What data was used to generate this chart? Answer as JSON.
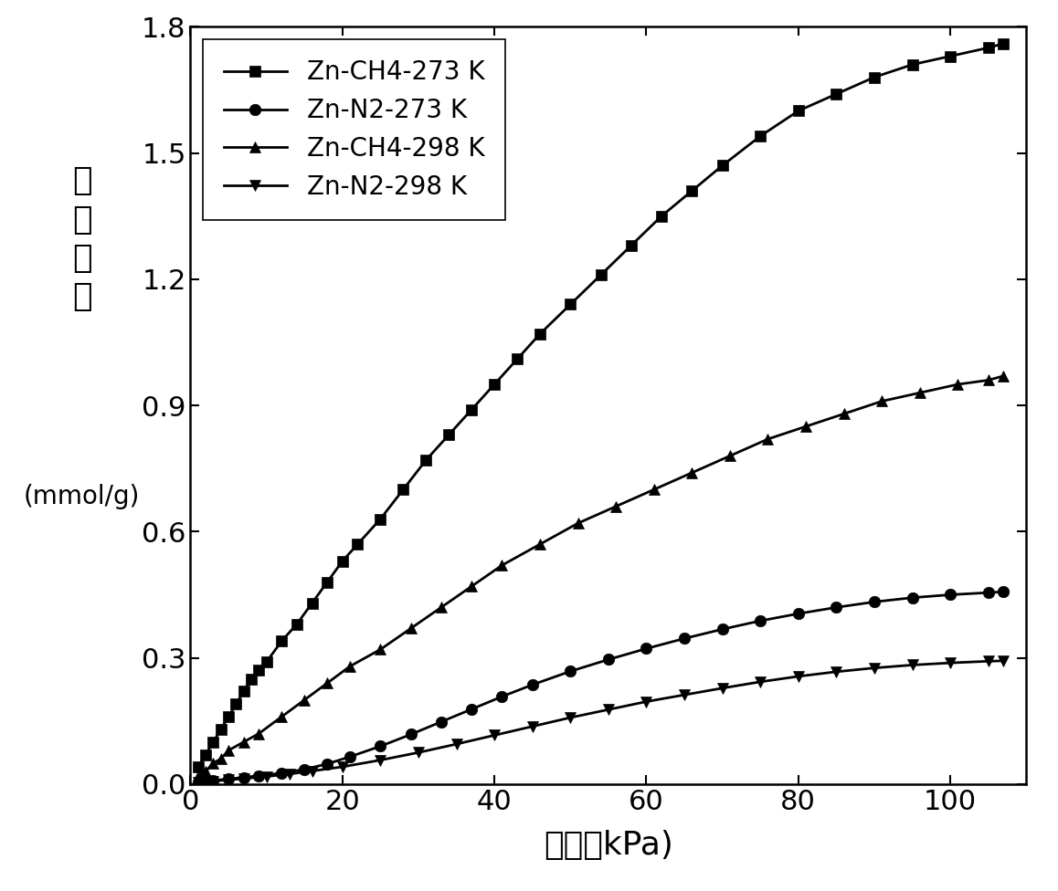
{
  "xlabel": "压力（kPa)",
  "ylabel_cn": "吸\n附\n容\n量",
  "ylabel_en": "(mmol/g)",
  "xlim": [
    0,
    110
  ],
  "ylim": [
    0,
    1.8
  ],
  "xticks": [
    0,
    20,
    40,
    60,
    80,
    100
  ],
  "yticks": [
    0.0,
    0.3,
    0.6,
    0.9,
    1.2,
    1.5,
    1.8
  ],
  "series": [
    {
      "label": "Zn-CH4-273 K",
      "marker": "s",
      "color": "#000000",
      "x": [
        1,
        2,
        3,
        4,
        5,
        6,
        7,
        8,
        9,
        10,
        12,
        14,
        16,
        18,
        20,
        22,
        25,
        28,
        31,
        34,
        37,
        40,
        43,
        46,
        50,
        54,
        58,
        62,
        66,
        70,
        75,
        80,
        85,
        90,
        95,
        100,
        105,
        107
      ],
      "y": [
        0.04,
        0.07,
        0.1,
        0.13,
        0.16,
        0.19,
        0.22,
        0.25,
        0.27,
        0.29,
        0.34,
        0.38,
        0.43,
        0.48,
        0.53,
        0.57,
        0.63,
        0.7,
        0.77,
        0.83,
        0.89,
        0.95,
        1.01,
        1.07,
        1.14,
        1.21,
        1.28,
        1.35,
        1.41,
        1.47,
        1.54,
        1.6,
        1.64,
        1.68,
        1.71,
        1.73,
        1.75,
        1.76
      ]
    },
    {
      "label": "Zn-N2-273 K",
      "marker": "o",
      "color": "#000000",
      "x": [
        1,
        2,
        3,
        5,
        7,
        9,
        12,
        15,
        18,
        21,
        25,
        29,
        33,
        37,
        41,
        45,
        50,
        55,
        60,
        65,
        70,
        75,
        80,
        85,
        90,
        95,
        100,
        105,
        107
      ],
      "y": [
        0.005,
        0.007,
        0.009,
        0.012,
        0.016,
        0.02,
        0.026,
        0.035,
        0.048,
        0.065,
        0.09,
        0.118,
        0.148,
        0.178,
        0.208,
        0.236,
        0.268,
        0.296,
        0.322,
        0.346,
        0.368,
        0.388,
        0.405,
        0.42,
        0.433,
        0.443,
        0.45,
        0.455,
        0.457
      ]
    },
    {
      "label": "Zn-CH4-298 K",
      "marker": "^",
      "color": "#000000",
      "x": [
        1,
        2,
        3,
        4,
        5,
        7,
        9,
        12,
        15,
        18,
        21,
        25,
        29,
        33,
        37,
        41,
        46,
        51,
        56,
        61,
        66,
        71,
        76,
        81,
        86,
        91,
        96,
        101,
        105,
        107
      ],
      "y": [
        0.02,
        0.03,
        0.05,
        0.06,
        0.08,
        0.1,
        0.12,
        0.16,
        0.2,
        0.24,
        0.28,
        0.32,
        0.37,
        0.42,
        0.47,
        0.52,
        0.57,
        0.62,
        0.66,
        0.7,
        0.74,
        0.78,
        0.82,
        0.85,
        0.88,
        0.91,
        0.93,
        0.95,
        0.96,
        0.97
      ]
    },
    {
      "label": "Zn-N2-298 K",
      "marker": "v",
      "color": "#000000",
      "x": [
        1,
        2,
        3,
        5,
        7,
        10,
        13,
        16,
        20,
        25,
        30,
        35,
        40,
        45,
        50,
        55,
        60,
        65,
        70,
        75,
        80,
        85,
        90,
        95,
        100,
        105,
        107
      ],
      "y": [
        0.003,
        0.005,
        0.007,
        0.01,
        0.013,
        0.018,
        0.024,
        0.031,
        0.041,
        0.057,
        0.075,
        0.095,
        0.116,
        0.137,
        0.158,
        0.177,
        0.196,
        0.212,
        0.228,
        0.243,
        0.256,
        0.267,
        0.276,
        0.283,
        0.288,
        0.292,
        0.293
      ]
    }
  ],
  "background_color": "#ffffff",
  "linewidth": 2.0,
  "markersize": 9,
  "legend_fontsize": 20,
  "tick_fontsize": 22,
  "label_fontsize": 26
}
